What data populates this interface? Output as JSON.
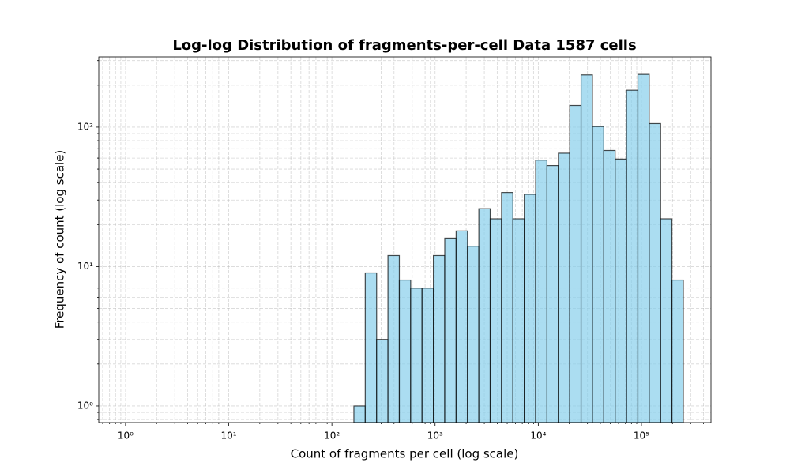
{
  "chart_data": {
    "type": "histogram",
    "title": "Log-log Distribution of fragments-per-cell Data 1587 cells",
    "xlabel": "Count of fragments per cell (log scale)",
    "ylabel": "Frequency of count (log scale)",
    "bins": [
      163.3,
      210.4,
      271.3,
      349.4,
      450.2,
      580.0,
      747.3,
      962.8,
      1241,
      1599,
      2061,
      2655,
      3421,
      4408,
      5679,
      7318,
      9432,
      12150,
      15660,
      20180,
      26000,
      33500,
      43170,
      55630,
      71690,
      92370,
      119000,
      153400,
      197600,
      254600
    ],
    "values": [
      1,
      9,
      3,
      12,
      8,
      7,
      7,
      12,
      16,
      18,
      14,
      26,
      22,
      34,
      22,
      33,
      58,
      53,
      65,
      143,
      237,
      101,
      68,
      59,
      184,
      239,
      106,
      22,
      8
    ],
    "color": "#87ceeb",
    "edgecolor": "#000000",
    "alpha": 0.7,
    "xscale": "log",
    "yscale": "log",
    "grid": true,
    "xlim": [
      0.55,
      472000
    ],
    "ylim": [
      0.76,
      319
    ],
    "xticks": [
      {
        "value": 1,
        "label": "10⁰"
      },
      {
        "value": 10,
        "label": "10¹"
      },
      {
        "value": 100,
        "label": "10²"
      },
      {
        "value": 1000,
        "label": "10³"
      },
      {
        "value": 10000,
        "label": "10⁴"
      },
      {
        "value": 100000,
        "label": "10⁵"
      }
    ],
    "xminorticks": [
      0.6,
      0.7,
      0.8,
      0.9,
      2,
      3,
      4,
      5,
      6,
      7,
      8,
      9,
      20,
      30,
      40,
      50,
      60,
      70,
      80,
      90,
      200,
      300,
      400,
      500,
      600,
      700,
      800,
      900,
      2000,
      3000,
      4000,
      5000,
      6000,
      7000,
      8000,
      9000,
      20000,
      30000,
      40000,
      50000,
      60000,
      70000,
      80000,
      90000,
      200000,
      300000,
      400000
    ],
    "yticks": [
      {
        "value": 1,
        "label": "10⁰"
      },
      {
        "value": 10,
        "label": "10¹"
      },
      {
        "value": 100,
        "label": "10²"
      }
    ],
    "yminorticks": [
      0.8,
      0.9,
      2,
      3,
      4,
      5,
      6,
      7,
      8,
      9,
      20,
      30,
      40,
      50,
      60,
      70,
      80,
      90,
      200,
      300
    ]
  }
}
